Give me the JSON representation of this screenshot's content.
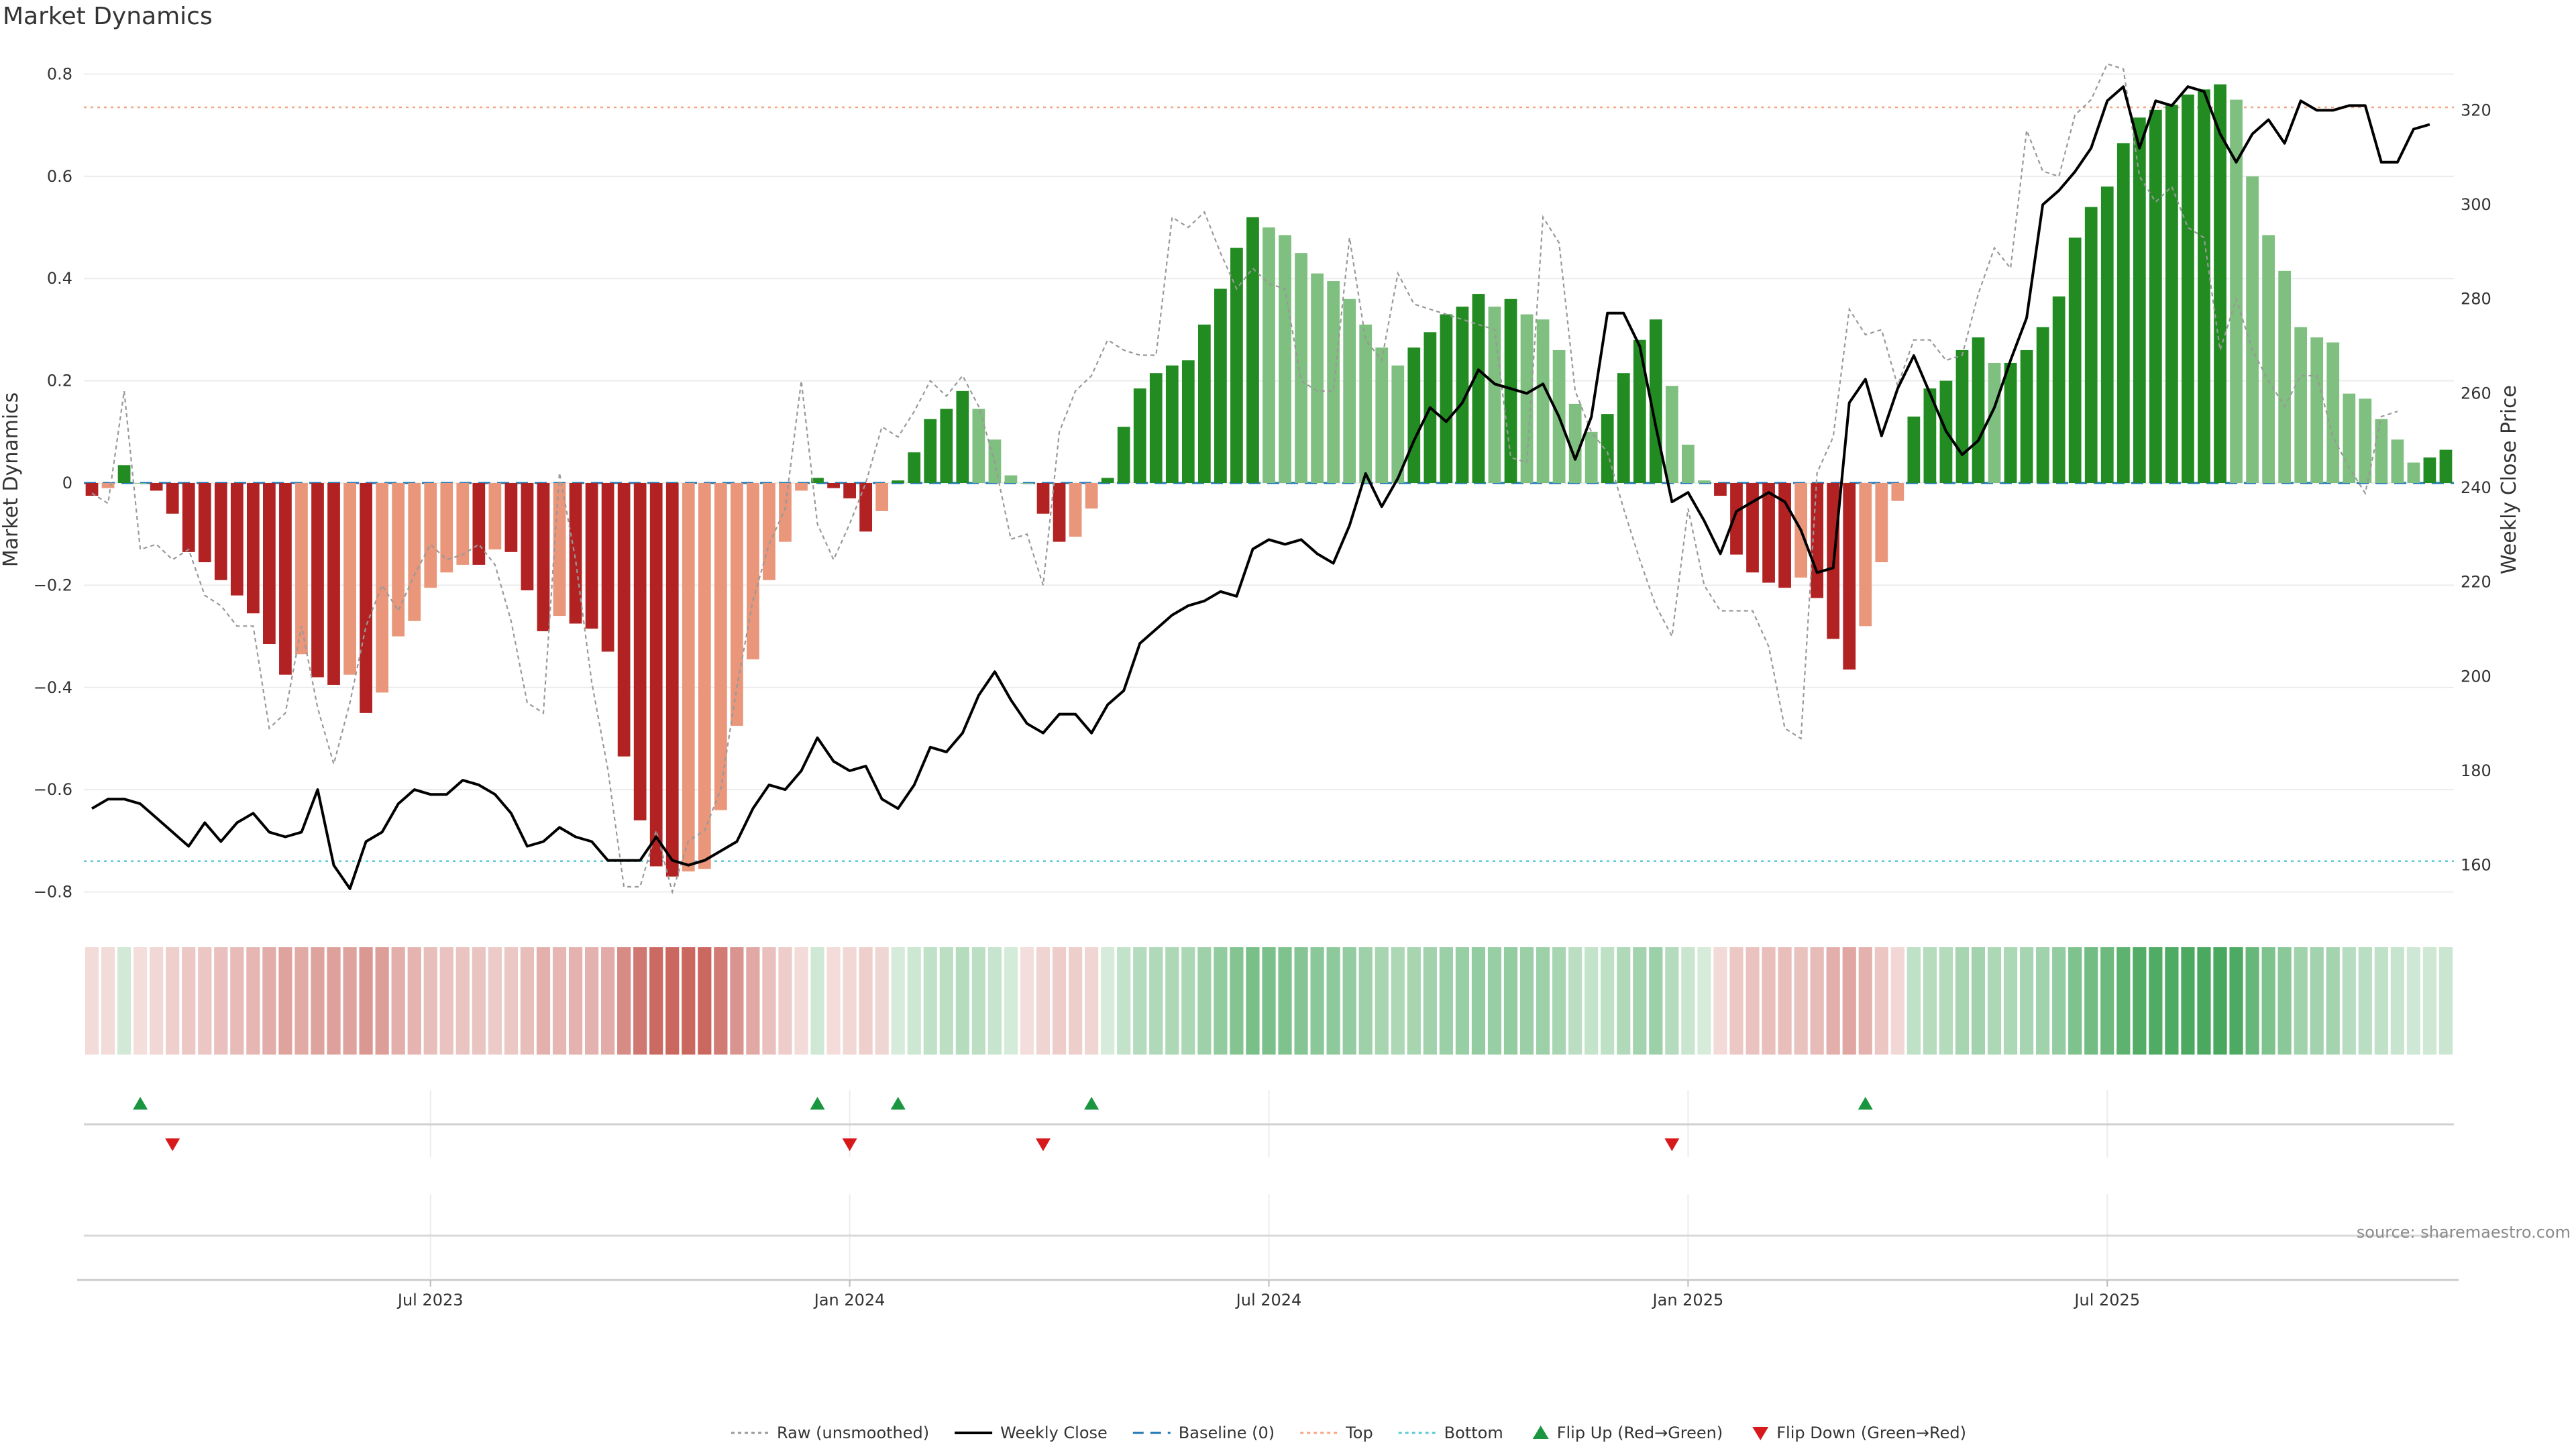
{
  "chart_data": {
    "type": "bar",
    "title": "Market Dynamics",
    "source": "source: sharemaestro.com",
    "ylabel_left": "Market Dynamics",
    "ylabel_right": "Weekly Close Price",
    "ylim_left": [
      -0.84,
      0.84
    ],
    "ylim_right": [
      150,
      332
    ],
    "yticks_left": [
      0.8,
      0.6,
      0.4,
      0.2,
      0,
      -0.2,
      -0.4,
      -0.6,
      -0.8
    ],
    "yticks_left_labels": [
      "0.8",
      "0.6",
      "0.4",
      "0.2",
      "0",
      "−0.2",
      "−0.4",
      "−0.6",
      "−0.8"
    ],
    "yticks_right": [
      320,
      300,
      280,
      260,
      240,
      220,
      200,
      180,
      160
    ],
    "xtick_labels": [
      "Jul 2023",
      "Jan 2024",
      "Jul 2024",
      "Jan 2025",
      "Jul 2025"
    ],
    "xtick_week_index": [
      21,
      47,
      73,
      99,
      125
    ],
    "top_level": 0.735,
    "bottom_level": -0.74,
    "grid": true,
    "legend_placement": "bottom-center",
    "legend": [
      {
        "label": "Raw (unsmoothed)",
        "kind": "dotted-line",
        "color": "#999999"
      },
      {
        "label": "Weekly Close",
        "kind": "line",
        "color": "#000000"
      },
      {
        "label": "Baseline (0)",
        "kind": "dashed-line",
        "color": "#1f77b4"
      },
      {
        "label": "Top",
        "kind": "dotted-line",
        "color": "#f4a582"
      },
      {
        "label": "Bottom",
        "kind": "dotted-line",
        "color": "#5bc8d8"
      },
      {
        "label": "Flip Up (Red→Green)",
        "kind": "triangle-up",
        "color": "#1a9641"
      },
      {
        "label": "Flip Down (Green→Red)",
        "kind": "triangle-down",
        "color": "#d7191c"
      }
    ],
    "colors": {
      "green_strong": "#228b22",
      "green_weak": "#7fbf7f",
      "red_strong": "#b22222",
      "red_weak": "#e9967a",
      "close_line": "#000000",
      "raw_line": "#999999",
      "baseline": "#1f77b4",
      "top": "#f4a582",
      "bottom": "#5bc8d8",
      "flip_up": "#1a9641",
      "flip_down": "#d7191c"
    },
    "series": [
      {
        "name": "Market Dynamics",
        "values": [
          -0.025,
          -0.01,
          0.035,
          0,
          -0.015,
          -0.06,
          -0.135,
          -0.155,
          -0.19,
          -0.22,
          -0.255,
          -0.315,
          -0.375,
          -0.335,
          -0.38,
          -0.395,
          -0.375,
          -0.45,
          -0.41,
          -0.3,
          -0.27,
          -0.205,
          -0.175,
          -0.16,
          -0.16,
          -0.13,
          -0.135,
          -0.21,
          -0.29,
          -0.26,
          -0.275,
          -0.285,
          -0.33,
          -0.535,
          -0.66,
          -0.75,
          -0.77,
          -0.76,
          -0.755,
          -0.64,
          -0.475,
          -0.345,
          -0.19,
          -0.115,
          -0.015,
          0.01,
          -0.01,
          -0.03,
          -0.095,
          -0.055,
          0.005,
          0.06,
          0.125,
          0.145,
          0.18,
          0.145,
          0.085,
          0.015,
          0,
          -0.06,
          -0.115,
          -0.105,
          -0.05,
          0.01,
          0.11,
          0.185,
          0.215,
          0.23,
          0.24,
          0.31,
          0.38,
          0.46,
          0.52,
          0.5,
          0.485,
          0.45,
          0.41,
          0.395,
          0.36,
          0.31,
          0.265,
          0.23,
          0.265,
          0.295,
          0.33,
          0.345,
          0.37,
          0.345,
          0.36,
          0.33,
          0.32,
          0.26,
          0.155,
          0.1,
          0.135,
          0.215,
          0.28,
          0.32,
          0.19,
          0.075,
          0.005,
          -0.025,
          -0.14,
          -0.175,
          -0.195,
          -0.205,
          -0.185,
          -0.225,
          -0.305,
          -0.365,
          -0.28,
          -0.155,
          -0.035,
          0.13,
          0.185,
          0.2,
          0.26,
          0.285,
          0.235,
          0.235,
          0.26,
          0.305,
          0.365,
          0.48,
          0.54,
          0.58,
          0.665,
          0.715,
          0.73,
          0.74,
          0.76,
          0.77,
          0.78,
          0.75,
          0.6,
          0.485,
          0.415,
          0.305,
          0.285,
          0.275,
          0.175,
          0.165,
          0.125,
          0.085,
          0.04,
          0.05,
          0.065
        ]
      },
      {
        "name": "Raw (unsmoothed)",
        "values": [
          -0.02,
          -0.04,
          0.18,
          -0.13,
          -0.12,
          -0.15,
          -0.13,
          -0.22,
          -0.24,
          -0.28,
          -0.28,
          -0.48,
          -0.45,
          -0.28,
          -0.44,
          -0.55,
          -0.43,
          -0.28,
          -0.2,
          -0.25,
          -0.18,
          -0.12,
          -0.15,
          -0.14,
          -0.12,
          -0.16,
          -0.27,
          -0.43,
          -0.45,
          0.02,
          -0.15,
          -0.39,
          -0.56,
          -0.79,
          -0.79,
          -0.68,
          -0.8,
          -0.7,
          -0.68,
          -0.6,
          -0.4,
          -0.23,
          -0.12,
          -0.05,
          0.2,
          -0.08,
          -0.15,
          -0.08,
          0.0,
          0.11,
          0.09,
          0.14,
          0.2,
          0.17,
          0.21,
          0.15,
          0.04,
          -0.11,
          -0.1,
          -0.2,
          0.1,
          0.18,
          0.21,
          0.28,
          0.26,
          0.25,
          0.25,
          0.52,
          0.5,
          0.53,
          0.45,
          0.38,
          0.42,
          0.39,
          0.38,
          0.2,
          0.18,
          0.18,
          0.48,
          0.28,
          0.24,
          0.41,
          0.35,
          0.34,
          0.33,
          0.32,
          0.31,
          0.3,
          0.05,
          0.04,
          0.52,
          0.47,
          0.18,
          0.1,
          0.06,
          -0.05,
          -0.15,
          -0.24,
          -0.3,
          -0.05,
          -0.2,
          -0.25,
          -0.25,
          -0.25,
          -0.32,
          -0.48,
          -0.5,
          0.02,
          0.09,
          0.34,
          0.29,
          0.3,
          0.19,
          0.28,
          0.28,
          0.24,
          0.25,
          0.37,
          0.46,
          0.42,
          0.69,
          0.61,
          0.6,
          0.72,
          0.75,
          0.82,
          0.81,
          0.6,
          0.55,
          0.58,
          0.5,
          0.48,
          0.26,
          0.36,
          0.26,
          0.2,
          0.15,
          0.21,
          0.21,
          0.09,
          0.03,
          -0.02,
          0.13,
          0.14
        ]
      },
      {
        "name": "Weekly Close",
        "values": [
          172,
          174,
          174,
          173,
          170,
          167,
          164,
          169,
          165,
          169,
          171,
          167,
          166,
          167,
          176,
          160,
          155,
          165,
          167,
          173,
          176,
          175,
          175,
          178,
          177,
          175,
          171,
          164,
          165,
          168,
          166,
          165,
          161,
          161,
          161,
          166,
          161,
          160,
          161,
          163,
          165,
          172,
          177,
          176,
          180,
          187,
          182,
          180,
          181,
          174,
          172,
          177,
          185,
          184,
          188,
          196,
          201,
          195,
          190,
          188,
          192,
          192,
          188,
          194,
          197,
          207,
          210,
          213,
          215,
          216,
          218,
          217,
          227,
          229,
          228,
          229,
          226,
          224,
          232,
          243,
          236,
          242,
          250,
          257,
          254,
          258,
          265,
          262,
          261,
          260,
          262,
          255,
          246,
          255,
          277,
          277,
          270,
          253,
          237,
          239,
          233,
          226,
          235,
          237,
          239,
          237,
          231,
          222,
          223,
          258,
          263,
          251,
          261,
          268,
          260,
          252,
          247,
          250,
          257,
          267,
          276,
          300,
          303,
          307,
          312,
          322,
          325,
          312,
          322,
          321,
          325,
          324,
          315,
          309,
          315,
          318,
          313,
          322,
          320,
          320,
          321,
          321,
          309,
          309,
          316,
          317
        ]
      }
    ],
    "color_strip_strength": [
      0.02,
      0.02,
      0.04,
      0.0,
      0.05,
      0.11,
      0.16,
      0.18,
      0.22,
      0.26,
      0.3,
      0.37,
      0.44,
      0.39,
      0.44,
      0.46,
      0.44,
      0.52,
      0.48,
      0.35,
      0.31,
      0.24,
      0.2,
      0.19,
      0.19,
      0.15,
      0.16,
      0.24,
      0.34,
      0.3,
      0.32,
      0.33,
      0.38,
      0.62,
      0.77,
      0.87,
      0.89,
      0.88,
      0.88,
      0.74,
      0.55,
      0.4,
      0.22,
      0.13,
      0.02,
      0.05,
      0.01,
      0.04,
      0.11,
      0.06,
      0.01,
      0.07,
      0.15,
      0.17,
      0.21,
      0.17,
      0.1,
      0.02,
      0.0,
      0.07,
      0.13,
      0.12,
      0.06,
      0.01,
      0.13,
      0.22,
      0.25,
      0.27,
      0.28,
      0.36,
      0.44,
      0.53,
      0.6,
      0.58,
      0.56,
      0.52,
      0.48,
      0.46,
      0.42,
      0.36,
      0.31,
      0.27,
      0.31,
      0.34,
      0.38,
      0.4,
      0.43,
      0.4,
      0.42,
      0.38,
      0.37,
      0.3,
      0.18,
      0.12,
      0.16,
      0.25,
      0.33,
      0.37,
      0.22,
      0.09,
      0.01,
      0.03,
      0.16,
      0.2,
      0.23,
      0.24,
      0.21,
      0.26,
      0.35,
      0.42,
      0.33,
      0.18,
      0.04,
      0.15,
      0.21,
      0.23,
      0.3,
      0.33,
      0.27,
      0.27,
      0.3,
      0.35,
      0.42,
      0.56,
      0.63,
      0.67,
      0.77,
      0.83,
      0.85,
      0.86,
      0.88,
      0.89,
      0.9,
      0.87,
      0.7,
      0.56,
      0.48,
      0.35,
      0.33,
      0.32,
      0.2,
      0.19,
      0.15,
      0.1,
      0.05,
      0.06,
      0.08
    ],
    "flip_up_weeks": [
      3,
      45,
      50,
      62,
      110
    ],
    "flip_down_weeks": [
      5,
      47,
      59,
      98
    ]
  }
}
